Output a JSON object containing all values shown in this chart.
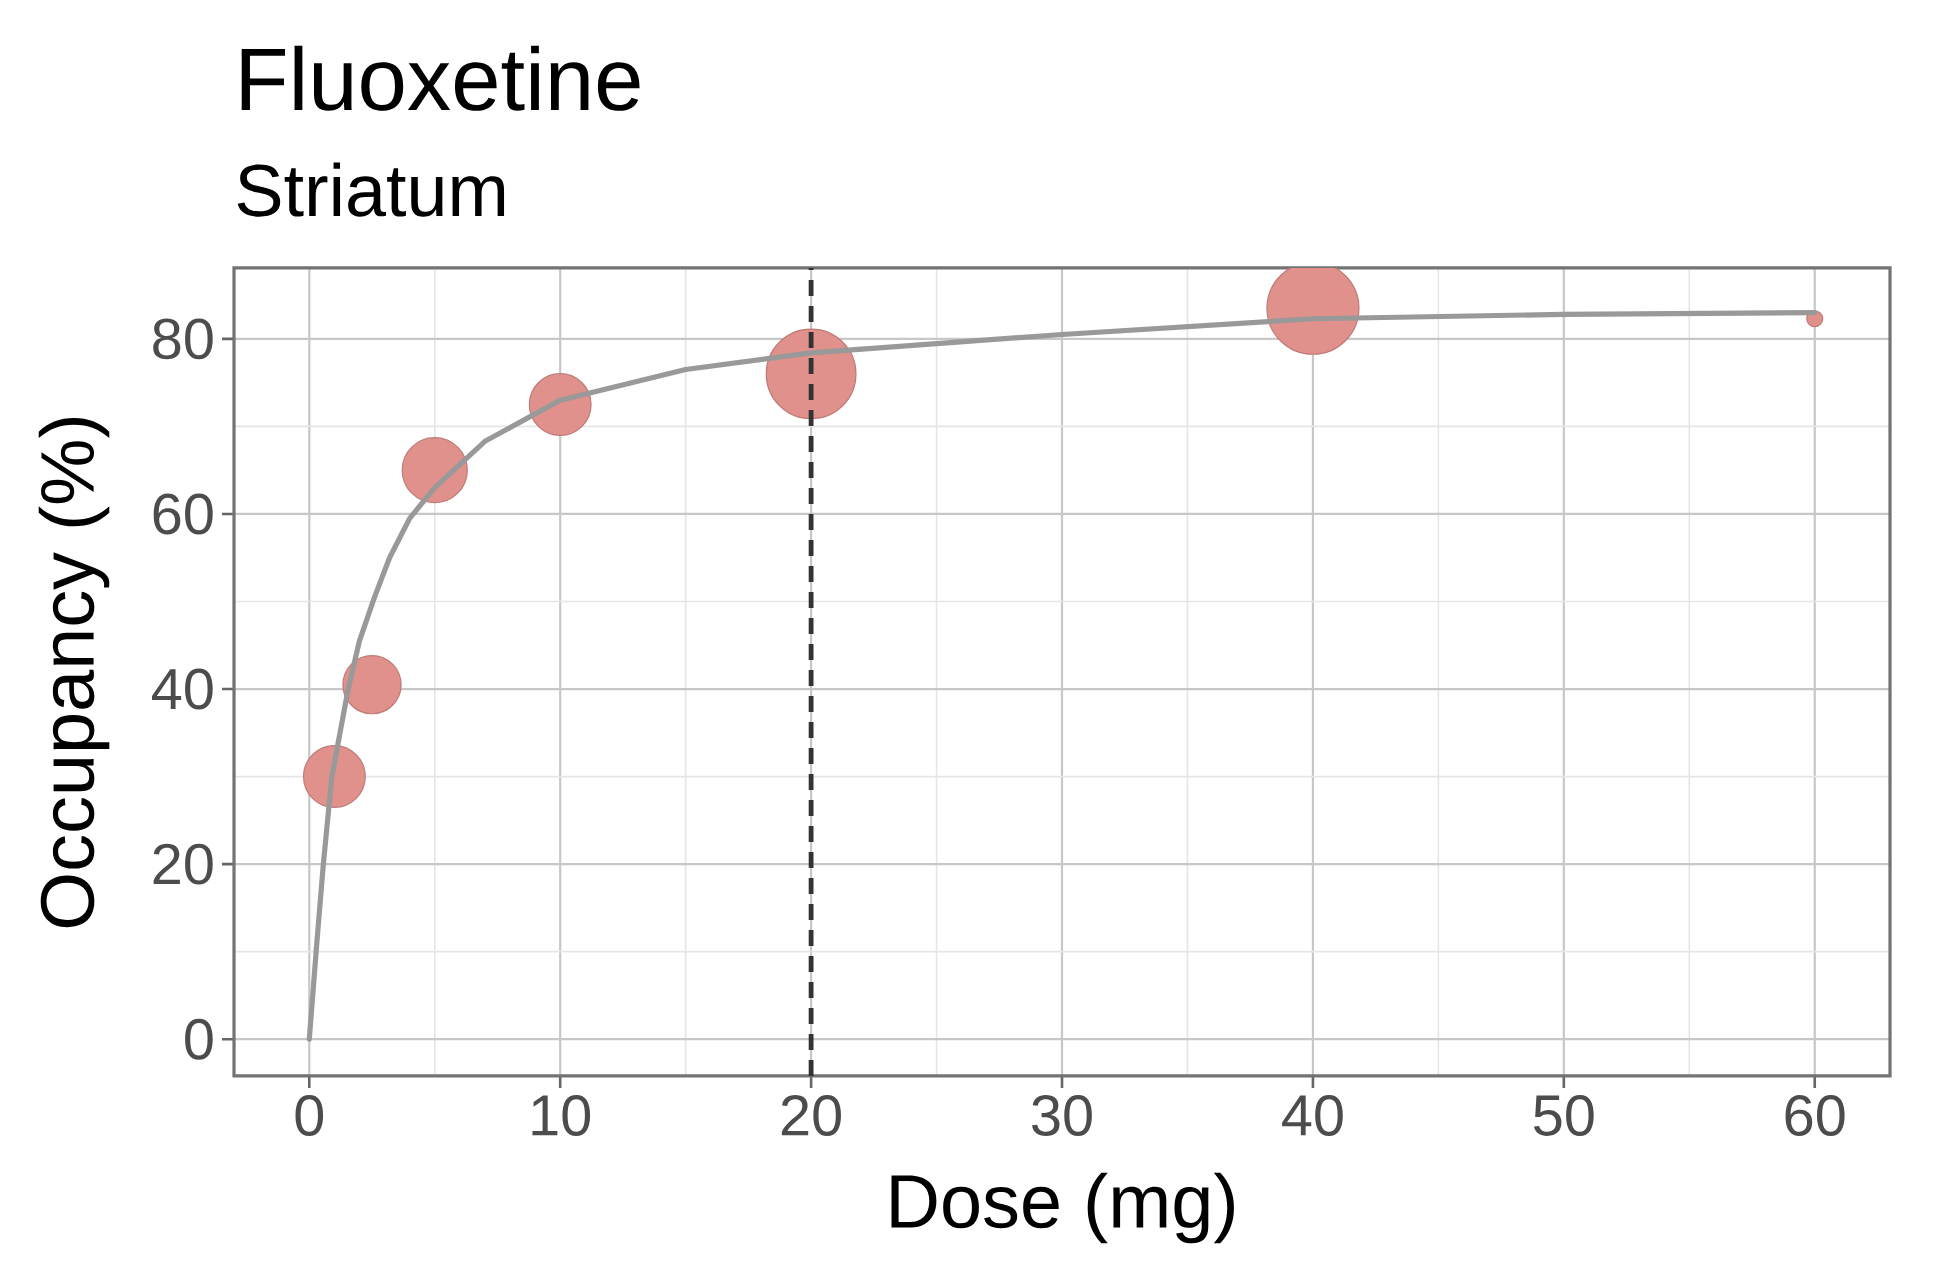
{
  "chart_data": {
    "type": "bubble",
    "title": "Fluoxetine",
    "subtitle": "Striatum",
    "xlabel": "Dose (mg)",
    "ylabel": "Occupancy (%)",
    "xlim": [
      -3,
      63
    ],
    "ylim": [
      -4.2,
      88.1
    ],
    "xticks": [
      0,
      10,
      20,
      30,
      40,
      50,
      60
    ],
    "yticks": [
      0,
      20,
      40,
      60,
      80
    ],
    "grid": true,
    "series": [
      {
        "type": "line",
        "color": "#999999",
        "x": [
          0,
          0.3,
          0.56,
          0.9,
          1.55,
          2,
          2.6,
          3.2,
          4,
          5,
          7,
          10,
          15,
          20,
          30,
          40,
          50,
          60
        ],
        "values": [
          0,
          11,
          20,
          30,
          40,
          45.5,
          50.5,
          55,
          59.5,
          63,
          68.3,
          73,
          76.5,
          78.4,
          80.5,
          82.3,
          82.8,
          83
        ]
      },
      {
        "marker": "circle",
        "color": "#e0918c",
        "x": [
          1,
          2.5,
          5,
          10,
          20,
          40,
          60
        ],
        "values": [
          30,
          40.5,
          65,
          72.5,
          76,
          83.5,
          82.3
        ],
        "sizes": [
          0.45,
          0.4,
          0.5,
          0.45,
          0.95,
          1,
          0.03
        ]
      }
    ],
    "ref_lines": [
      {
        "axis": "x",
        "value": 20,
        "color": "#333333",
        "line_style": "dashed"
      }
    ]
  }
}
